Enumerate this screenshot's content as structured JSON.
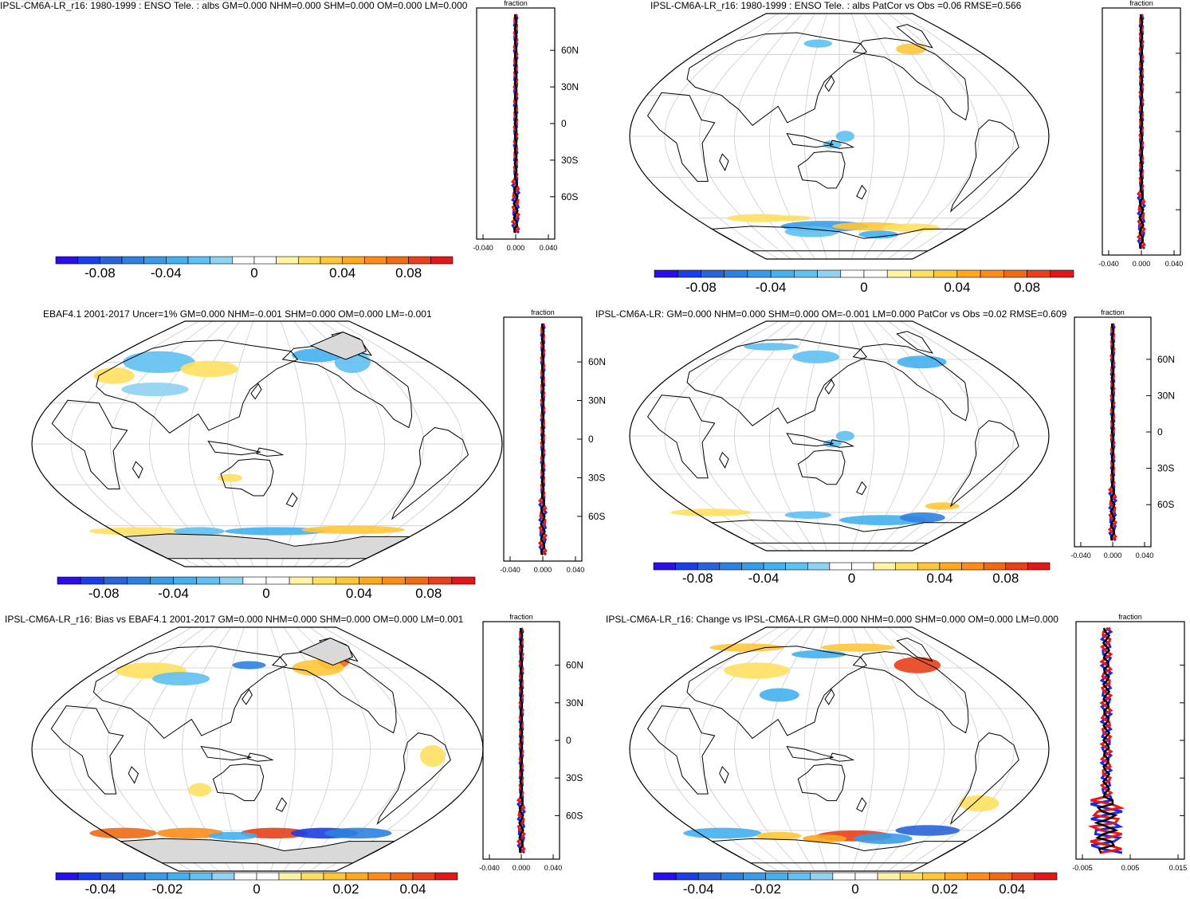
{
  "colors": {
    "scale": [
      "#2b0fe8",
      "#1a3fe6",
      "#2a64d8",
      "#2d82e0",
      "#3a9ce8",
      "#44b0ef",
      "#5fc0f2",
      "#8fd2f2",
      "#ffffff",
      "#ffffff",
      "#fff3a6",
      "#ffe062",
      "#ffc63a",
      "#ffa820",
      "#ff8c1a",
      "#f06a14",
      "#e8401a",
      "#e01818"
    ],
    "land_fill": "#d9d9d9",
    "profile_model": "#e81818",
    "profile_obs": "#1a28e8",
    "profile_mean": "#000000"
  },
  "panels": [
    {
      "title": "IPSL-CM6A-LR_r16: 1980-1999 : ENSO Tele. : albs GM=0.000 NHM=0.000 SHM=0.000 OM=0.000 LM=0.000",
      "colorbar_labels": [
        "-0.08",
        "-0.04",
        "0",
        "0.04",
        "0.08"
      ],
      "profile": {
        "label": "fraction",
        "xticks": [
          "-0.040",
          "0.000",
          "0.040"
        ],
        "yticks": [
          "60N",
          "30N",
          "0",
          "30S",
          "60S"
        ]
      }
    },
    {
      "title": "IPSL-CM6A-LR_r16: 1980-1999 : ENSO Tele. : albs PatCor vs Obs =0.06 RMSE=0.566",
      "colorbar_labels": [
        "-0.08",
        "-0.04",
        "0",
        "0.04",
        "0.08"
      ],
      "profile": {
        "label": "fraction",
        "xticks": [
          "-0.040",
          "0.000",
          "0.040"
        ],
        "yticks": []
      }
    },
    {
      "title": "EBAF4.1 2001-2017 Uncer=1% GM=0.000 NHM=-0.001 SHM=0.000 OM=0.000 LM=-0.001",
      "colorbar_labels": [
        "-0.08",
        "-0.04",
        "0",
        "0.04",
        "0.08"
      ],
      "profile": {
        "label": "fraction",
        "xticks": [
          "-0.040",
          "0.000",
          "0.040"
        ],
        "yticks": [
          "60N",
          "30N",
          "0",
          "30S",
          "60S"
        ]
      }
    },
    {
      "title": "IPSL-CM6A-LR: GM=0.000 NHM=0.000 SHM=0.000 OM=-0.001 LM=0.000 PatCor vs Obs =0.02 RMSE=0.609",
      "colorbar_labels": [
        "-0.08",
        "-0.04",
        "0",
        "0.04",
        "0.08"
      ],
      "profile": {
        "label": "fraction",
        "xticks": [
          "-0.040",
          "0.000",
          "0.040"
        ],
        "yticks": [
          "60N",
          "30N",
          "0",
          "30S",
          "60S"
        ]
      }
    },
    {
      "title": "IPSL-CM6A-LR_r16: Bias vs EBAF4.1 2001-2017 GM=0.000 NHM=0.000 SHM=0.000 OM=0.000 LM=0.001",
      "colorbar_labels": [
        "-0.04",
        "-0.02",
        "0",
        "0.02",
        "0.04"
      ],
      "profile": {
        "label": "fraction",
        "xticks": [
          "-0.040",
          "0.000",
          "0.040"
        ],
        "yticks": [
          "60N",
          "30N",
          "0",
          "30S",
          "60S"
        ]
      }
    },
    {
      "title": "IPSL-CM6A-LR_r16: Change vs IPSL-CM6A-LR GM=0.000 NHM=0.000 SHM=0.000 OM=0.000 LM=0.000",
      "colorbar_labels": [
        "-0.04",
        "-0.02",
        "0",
        "0.02",
        "0.04"
      ],
      "profile": {
        "label": "fraction",
        "xticks": [
          "-0.005",
          "0.005",
          "0.015"
        ],
        "yticks": [
          "60N",
          "30N",
          "0",
          "30S",
          "60S"
        ]
      }
    }
  ]
}
